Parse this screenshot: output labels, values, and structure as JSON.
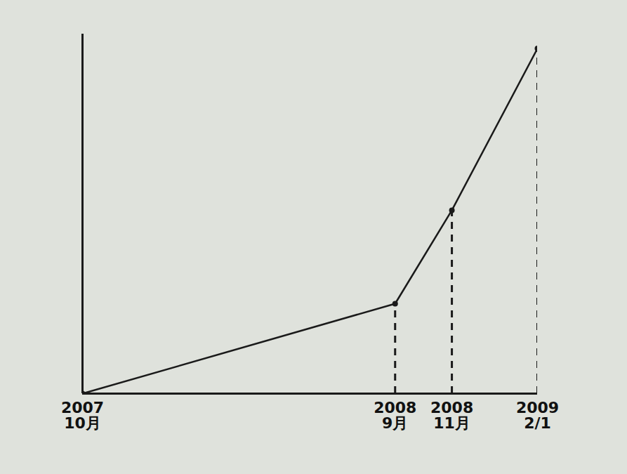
{
  "chart_data": {
    "type": "line",
    "x": [
      "2007-10",
      "2008-09",
      "2008-11",
      "2009-02-01"
    ],
    "values": [
      0,
      25,
      51,
      96
    ],
    "xlim": [
      "2007-10",
      "2009-02-01"
    ],
    "xticks": [
      {
        "value": "2007-10",
        "label": "2007 10月"
      },
      {
        "value": "2008-09",
        "label": "2008 9月"
      },
      {
        "value": "2008-11",
        "label": "2008 11月"
      },
      {
        "value": "2009-02-01",
        "label": "2009 2/1"
      }
    ],
    "ylim": [
      0,
      100
    ],
    "tick_labels": "x",
    "grid": false,
    "color": "#1a1a1a",
    "marker": "circle",
    "line_style": "solid"
  }
}
